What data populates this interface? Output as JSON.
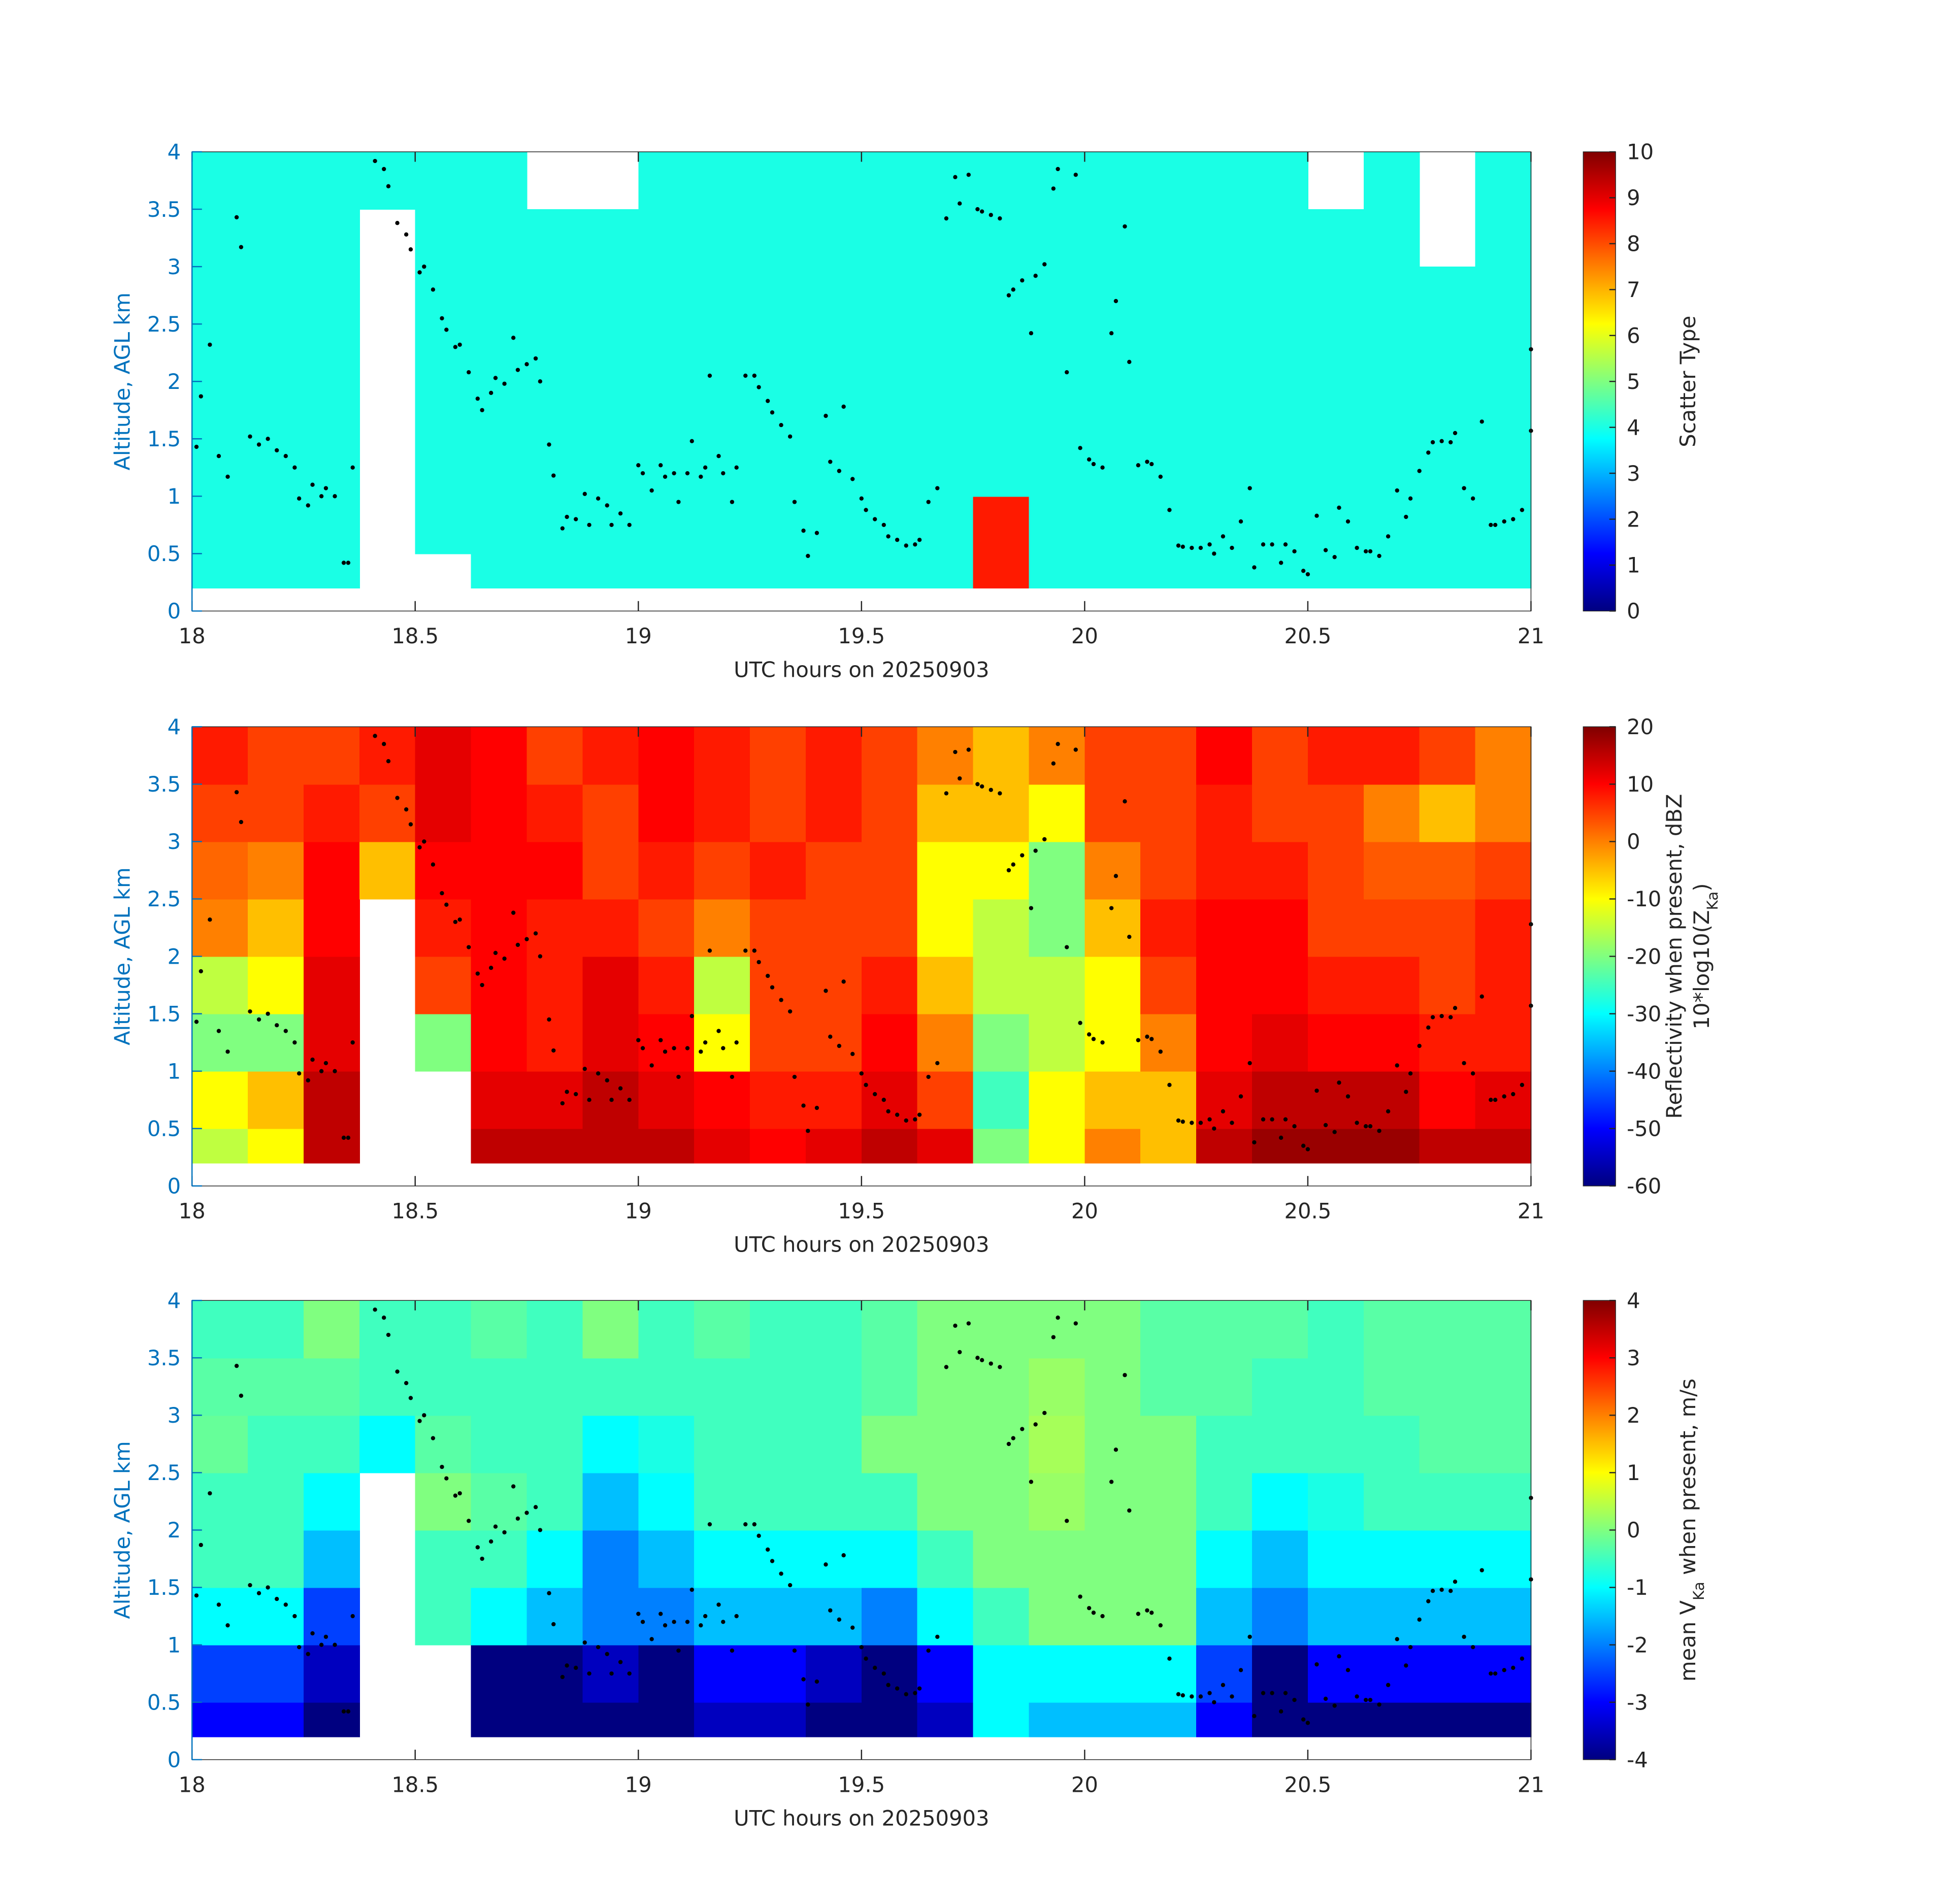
{
  "points": {
    "x": [
      18.01,
      18.02,
      18.04,
      18.06,
      18.08,
      18.1,
      18.11,
      18.13,
      18.15,
      18.17,
      18.19,
      18.21,
      18.23,
      18.24,
      18.26,
      18.27,
      18.29,
      18.3,
      18.32,
      18.34,
      18.35,
      18.36,
      18.41,
      18.43,
      18.44,
      18.46,
      18.48,
      18.49,
      18.51,
      18.52,
      18.54,
      18.56,
      18.57,
      18.59,
      18.6,
      18.62,
      18.64,
      18.65,
      18.67,
      18.68,
      18.7,
      18.72,
      18.73,
      18.75,
      18.77,
      18.78,
      18.8,
      18.81,
      18.83,
      18.84,
      18.86,
      18.88,
      18.89,
      18.91,
      18.93,
      18.94,
      18.96,
      18.98,
      19.0,
      19.01,
      19.03,
      19.05,
      19.06,
      19.08,
      19.09,
      19.11,
      19.12,
      19.14,
      19.15,
      19.16,
      19.18,
      19.19,
      19.21,
      19.22,
      19.24,
      19.26,
      19.27,
      19.29,
      19.3,
      19.32,
      19.34,
      19.35,
      19.37,
      19.38,
      19.4,
      19.42,
      19.43,
      19.45,
      19.46,
      19.48,
      19.5,
      19.51,
      19.53,
      19.55,
      19.56,
      19.58,
      19.6,
      19.62,
      19.63,
      19.65,
      19.67,
      19.69,
      19.71,
      19.72,
      19.74,
      19.76,
      19.77,
      19.79,
      19.81,
      19.83,
      19.84,
      19.86,
      19.88,
      19.89,
      19.91,
      19.93,
      19.94,
      19.96,
      19.98,
      19.99,
      20.01,
      20.02,
      20.04,
      20.06,
      20.07,
      20.09,
      20.1,
      20.12,
      20.14,
      20.15,
      20.17,
      20.19,
      20.21,
      20.22,
      20.24,
      20.26,
      20.28,
      20.29,
      20.31,
      20.33,
      20.35,
      20.37,
      20.38,
      20.4,
      20.42,
      20.44,
      20.45,
      20.47,
      20.49,
      20.5,
      20.52,
      20.54,
      20.56,
      20.57,
      20.59,
      20.61,
      20.63,
      20.64,
      20.66,
      20.68,
      20.7,
      20.72,
      20.73,
      20.75,
      20.77,
      20.78,
      20.8,
      20.82,
      20.83,
      20.85,
      20.87,
      20.89,
      20.91,
      20.92,
      20.94,
      20.96,
      20.98,
      21.0,
      21.0
    ],
    "y": [
      1.43,
      1.87,
      2.32,
      1.35,
      1.17,
      3.43,
      3.17,
      1.52,
      1.45,
      1.5,
      1.4,
      1.35,
      1.25,
      0.98,
      0.92,
      1.1,
      1.0,
      1.07,
      1.0,
      0.42,
      0.42,
      1.25,
      3.92,
      3.85,
      3.7,
      3.38,
      3.28,
      3.15,
      2.95,
      3.0,
      2.8,
      2.55,
      2.45,
      2.3,
      2.32,
      2.08,
      1.85,
      1.75,
      1.9,
      2.03,
      1.98,
      2.38,
      2.1,
      2.15,
      2.2,
      2.0,
      1.45,
      1.18,
      0.72,
      0.82,
      0.8,
      1.02,
      0.75,
      0.98,
      0.92,
      0.75,
      0.85,
      0.75,
      1.27,
      1.2,
      1.05,
      1.27,
      1.17,
      1.2,
      0.95,
      1.2,
      1.48,
      1.17,
      1.25,
      2.05,
      1.35,
      1.2,
      0.95,
      1.25,
      2.05,
      2.05,
      1.95,
      1.83,
      1.73,
      1.62,
      1.52,
      0.95,
      0.7,
      0.48,
      0.68,
      1.7,
      1.3,
      1.22,
      1.78,
      1.15,
      0.98,
      0.88,
      0.8,
      0.75,
      0.65,
      0.62,
      0.57,
      0.58,
      0.62,
      0.95,
      1.07,
      3.42,
      3.78,
      3.55,
      3.8,
      3.5,
      3.48,
      3.45,
      3.42,
      2.75,
      2.8,
      2.88,
      2.42,
      2.92,
      3.02,
      3.68,
      3.85,
      2.08,
      3.8,
      1.42,
      1.32,
      1.28,
      1.25,
      2.42,
      2.7,
      3.35,
      2.17,
      1.27,
      1.3,
      1.28,
      1.17,
      0.88,
      0.57,
      0.56,
      0.55,
      0.55,
      0.58,
      0.5,
      0.65,
      0.55,
      0.78,
      1.07,
      0.38,
      0.58,
      0.58,
      0.42,
      0.58,
      0.52,
      0.35,
      0.32,
      0.83,
      0.53,
      0.47,
      0.9,
      0.78,
      0.55,
      0.52,
      0.52,
      0.48,
      0.65,
      1.05,
      0.82,
      0.98,
      1.22,
      1.38,
      1.47,
      1.48,
      1.47,
      1.55,
      1.07,
      0.98,
      1.65,
      0.75,
      0.75,
      0.78,
      0.8,
      0.88,
      1.57,
      2.28
    ],
    "color": "#000000"
  },
  "chart_data": [
    {
      "type": "heatmap",
      "xlabel": "UTC hours on 20250903",
      "ylabel": "Altitude, AGL km",
      "ylabel_color": "#0072bd",
      "xlim": [
        18,
        21
      ],
      "ylim": [
        0,
        4
      ],
      "xticks": [
        18,
        18.5,
        19,
        19.5,
        20,
        20.5,
        21
      ],
      "yticks": [
        0,
        0.5,
        1,
        1.5,
        2,
        2.5,
        3,
        3.5,
        4
      ],
      "x_edges": [
        18,
        18.125,
        18.25,
        18.375,
        18.5,
        18.625,
        18.75,
        18.875,
        19,
        19.125,
        19.25,
        19.375,
        19.5,
        19.625,
        19.75,
        19.875,
        20,
        20.125,
        20.25,
        20.375,
        20.5,
        20.625,
        20.75,
        20.875,
        21
      ],
      "y_edges": [
        0.2,
        0.5,
        1,
        1.5,
        2,
        2.5,
        3,
        3.5,
        4
      ],
      "colormap": "jet",
      "clim": [
        0,
        10
      ],
      "cticks": [
        0,
        1,
        2,
        3,
        4,
        5,
        6,
        7,
        8,
        9,
        10
      ],
      "colorbar_label": [
        [
          {
            "text": "Scatter Type"
          }
        ]
      ],
      "z": [
        [
          4,
          4,
          4,
          4,
          4,
          4,
          4,
          4
        ],
        [
          4,
          4,
          4,
          4,
          4,
          4,
          4,
          4
        ],
        [
          4,
          4,
          4,
          4,
          4,
          4,
          4,
          4
        ],
        [
          null,
          null,
          null,
          null,
          null,
          null,
          null,
          4
        ],
        [
          null,
          4,
          4,
          4,
          4,
          4,
          4,
          4
        ],
        [
          4,
          4,
          4,
          4,
          4,
          4,
          4,
          4
        ],
        [
          4,
          4,
          4,
          4,
          4,
          4,
          4,
          null
        ],
        [
          4,
          4,
          4,
          4,
          4,
          4,
          4,
          null
        ],
        [
          4,
          4,
          4,
          4,
          4,
          4,
          4,
          4
        ],
        [
          4,
          4,
          4,
          4,
          4,
          4,
          4,
          4
        ],
        [
          4,
          4,
          4,
          4,
          4,
          4,
          4,
          4
        ],
        [
          4,
          4,
          4,
          4,
          4,
          4,
          4,
          4
        ],
        [
          4,
          4,
          4,
          4,
          4,
          4,
          4,
          4
        ],
        [
          4,
          4,
          4,
          4,
          4,
          4,
          4,
          4
        ],
        [
          8.5,
          8.5,
          4,
          4,
          4,
          4,
          4,
          4
        ],
        [
          4,
          4,
          4,
          4,
          4,
          4,
          4,
          4
        ],
        [
          4,
          4,
          4,
          4,
          4,
          4,
          4,
          4
        ],
        [
          4,
          4,
          4,
          4,
          4,
          4,
          4,
          4
        ],
        [
          4,
          4,
          4,
          4,
          4,
          4,
          4,
          4
        ],
        [
          4,
          4,
          4,
          4,
          4,
          4,
          4,
          4
        ],
        [
          4,
          4,
          4,
          4,
          4,
          4,
          4,
          null
        ],
        [
          4,
          4,
          4,
          4,
          4,
          4,
          4,
          4
        ],
        [
          4,
          4,
          4,
          4,
          4,
          4,
          null,
          null
        ],
        [
          4,
          4,
          4,
          4,
          4,
          4,
          4,
          4
        ]
      ]
    },
    {
      "type": "heatmap",
      "xlabel": "UTC hours on 20250903",
      "ylabel": "Altitude, AGL km",
      "ylabel_color": "#0072bd",
      "xlim": [
        18,
        21
      ],
      "ylim": [
        0,
        4
      ],
      "xticks": [
        18,
        18.5,
        19,
        19.5,
        20,
        20.5,
        21
      ],
      "yticks": [
        0,
        0.5,
        1,
        1.5,
        2,
        2.5,
        3,
        3.5,
        4
      ],
      "x_edges": [
        18,
        18.125,
        18.25,
        18.375,
        18.5,
        18.625,
        18.75,
        18.875,
        19,
        19.125,
        19.25,
        19.375,
        19.5,
        19.625,
        19.75,
        19.875,
        20,
        20.125,
        20.25,
        20.375,
        20.5,
        20.625,
        20.75,
        20.875,
        21
      ],
      "y_edges": [
        0.2,
        0.5,
        1,
        1.5,
        2,
        2.5,
        3,
        3.5,
        4
      ],
      "colormap": "jet",
      "clim": [
        -60,
        20
      ],
      "cticks": [
        -60,
        -50,
        -40,
        -30,
        -20,
        -10,
        0,
        10,
        20
      ],
      "colorbar_label": [
        [
          {
            "text": "Reflectivity when present, dBZ"
          }
        ],
        [
          {
            "text": "10*log10(Z"
          },
          {
            "text": "Ka",
            "sub": true
          },
          {
            "text": ")"
          }
        ]
      ],
      "z": [
        [
          -15,
          -10,
          -20,
          -15,
          0,
          2,
          5,
          8
        ],
        [
          -10,
          -5,
          -20,
          -10,
          -5,
          0,
          5,
          5
        ],
        [
          15,
          15,
          12,
          12,
          10,
          10,
          8,
          5
        ],
        [
          null,
          null,
          null,
          null,
          null,
          -5,
          5,
          8
        ],
        [
          null,
          null,
          -20,
          5,
          8,
          10,
          12,
          12
        ],
        [
          15,
          12,
          10,
          10,
          10,
          10,
          10,
          10
        ],
        [
          15,
          12,
          8,
          8,
          8,
          10,
          8,
          5
        ],
        [
          15,
          15,
          12,
          12,
          8,
          5,
          5,
          8
        ],
        [
          15,
          12,
          10,
          8,
          5,
          8,
          10,
          10
        ],
        [
          12,
          10,
          -10,
          -15,
          0,
          5,
          8,
          8
        ],
        [
          10,
          8,
          5,
          5,
          5,
          8,
          5,
          5
        ],
        [
          12,
          8,
          5,
          5,
          5,
          5,
          8,
          8
        ],
        [
          15,
          12,
          10,
          8,
          5,
          5,
          5,
          5
        ],
        [
          12,
          5,
          0,
          -5,
          -10,
          -10,
          -5,
          0
        ],
        [
          -20,
          -25,
          -20,
          -15,
          -15,
          -10,
          -5,
          -5
        ],
        [
          -10,
          -10,
          -15,
          -15,
          -20,
          -20,
          -10,
          0
        ],
        [
          0,
          -5,
          -10,
          -10,
          -5,
          0,
          5,
          5
        ],
        [
          -5,
          -5,
          0,
          5,
          8,
          5,
          5,
          5
        ],
        [
          15,
          12,
          10,
          10,
          10,
          8,
          8,
          10
        ],
        [
          18,
          15,
          12,
          10,
          10,
          8,
          5,
          5
        ],
        [
          18,
          15,
          10,
          8,
          5,
          5,
          5,
          8
        ],
        [
          18,
          15,
          10,
          8,
          5,
          3,
          0,
          8
        ],
        [
          15,
          10,
          8,
          5,
          5,
          3,
          -5,
          5
        ],
        [
          15,
          12,
          8,
          8,
          8,
          5,
          0,
          0
        ]
      ]
    },
    {
      "type": "heatmap",
      "xlabel": "UTC hours on 20250903",
      "ylabel": "Altitude, AGL km",
      "ylabel_color": "#0072bd",
      "xlim": [
        18,
        21
      ],
      "ylim": [
        0,
        4
      ],
      "xticks": [
        18,
        18.5,
        19,
        19.5,
        20,
        20.5,
        21
      ],
      "yticks": [
        0,
        0.5,
        1,
        1.5,
        2,
        2.5,
        3,
        3.5,
        4
      ],
      "x_edges": [
        18,
        18.125,
        18.25,
        18.375,
        18.5,
        18.625,
        18.75,
        18.875,
        19,
        19.125,
        19.25,
        19.375,
        19.5,
        19.625,
        19.75,
        19.875,
        20,
        20.125,
        20.25,
        20.375,
        20.5,
        20.625,
        20.75,
        20.875,
        21
      ],
      "y_edges": [
        0.2,
        0.5,
        1,
        1.5,
        2,
        2.5,
        3,
        3.5,
        4
      ],
      "colormap": "jet",
      "clim": [
        -4,
        4
      ],
      "cticks": [
        -4,
        -3,
        -2,
        -1,
        0,
        1,
        2,
        3,
        4
      ],
      "colorbar_label": [
        [
          {
            "text": "mean V"
          },
          {
            "text": "Ka",
            "sub": true
          },
          {
            "text": " when present, m/s"
          }
        ]
      ],
      "z": [
        [
          -3,
          -2.5,
          -1,
          -0.5,
          -0.5,
          -0.2,
          -0.3,
          -0.5
        ],
        [
          -3,
          -2.5,
          -1,
          -0.5,
          -0.5,
          -0.5,
          -0.3,
          -0.5
        ],
        [
          -4,
          -3.5,
          -2.5,
          -1.5,
          -1,
          -0.5,
          -0.3,
          0
        ],
        [
          null,
          null,
          null,
          null,
          null,
          -1,
          -0.5,
          -0.5
        ],
        [
          null,
          null,
          -0.5,
          -0.5,
          0,
          -0.3,
          -0.5,
          -0.5
        ],
        [
          -4,
          -4,
          -1,
          -0.5,
          -0.3,
          -0.5,
          -0.5,
          -0.3
        ],
        [
          -4,
          -4,
          -1.5,
          -1,
          -0.5,
          -0.5,
          -0.5,
          -0.5
        ],
        [
          -4,
          -3.5,
          -2,
          -2,
          -1.5,
          -1,
          -0.5,
          0
        ],
        [
          -4,
          -4,
          -2,
          -1.5,
          -1,
          -0.8,
          -0.5,
          -0.5
        ],
        [
          -3.5,
          -3,
          -1.5,
          -1,
          -0.5,
          -0.5,
          -0.5,
          -0.3
        ],
        [
          -3.5,
          -3,
          -1.5,
          -1,
          -0.5,
          -0.5,
          -0.5,
          -0.5
        ],
        [
          -4,
          -3.5,
          -1.5,
          -1,
          -0.5,
          -0.5,
          -0.5,
          -0.5
        ],
        [
          -4,
          -4,
          -2,
          -1,
          -0.5,
          0,
          -0.3,
          -0.3
        ],
        [
          -3.5,
          -3,
          -1,
          -0.5,
          0,
          0,
          0,
          0
        ],
        [
          -1,
          -1,
          -0.5,
          0,
          0,
          0,
          0,
          0
        ],
        [
          -1.5,
          -1,
          0,
          0,
          0.2,
          0.3,
          0.2,
          0
        ],
        [
          -1.5,
          -1,
          0,
          0,
          0,
          0,
          0,
          0
        ],
        [
          -1.5,
          -1,
          0,
          0,
          0,
          0,
          -0.3,
          -0.3
        ],
        [
          -3,
          -2.5,
          -1.5,
          -1,
          -0.5,
          -0.5,
          -0.3,
          -0.3
        ],
        [
          -4,
          -4,
          -2,
          -1.5,
          -1,
          -0.5,
          -0.5,
          -0.3
        ],
        [
          -4,
          -3,
          -1.5,
          -1,
          -0.8,
          -0.5,
          -0.5,
          -0.5
        ],
        [
          -4,
          -3,
          -1.5,
          -1,
          -0.5,
          -0.5,
          -0.3,
          -0.3
        ],
        [
          -4,
          -3,
          -1.5,
          -1,
          -0.5,
          -0.3,
          -0.3,
          -0.3
        ],
        [
          -4,
          -3,
          -1.5,
          -1,
          -0.5,
          -0.3,
          -0.3,
          -0.3
        ]
      ]
    }
  ]
}
